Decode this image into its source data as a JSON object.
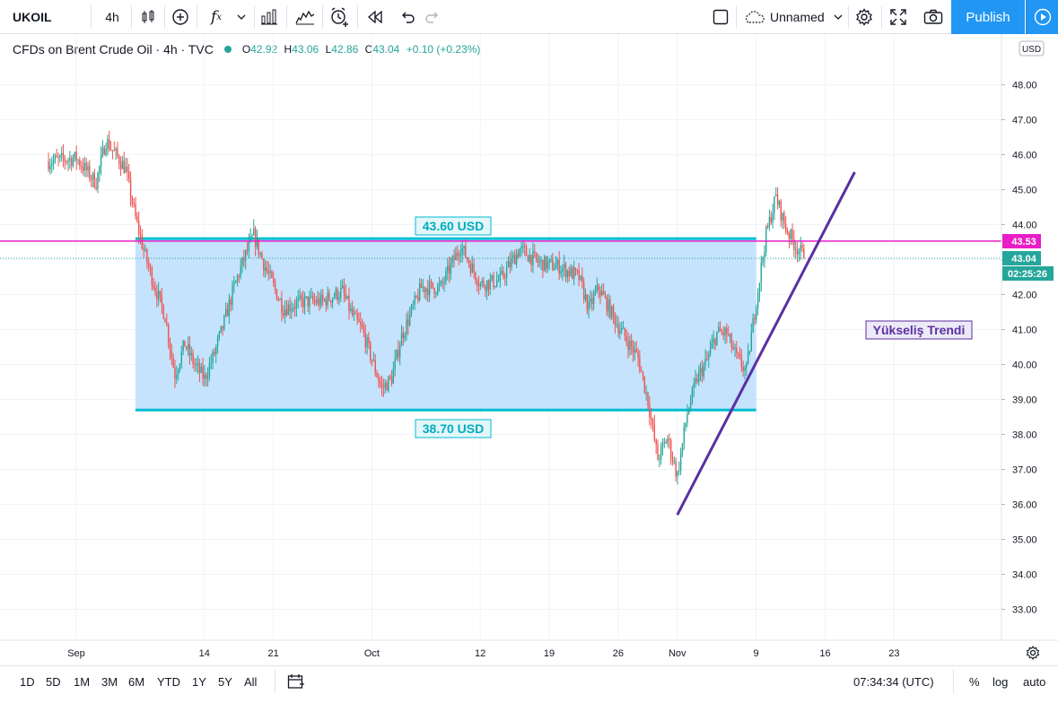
{
  "toolbar": {
    "symbol": "UKOIL",
    "interval": "4h",
    "layout_name": "Unnamed",
    "publish_label": "Publish"
  },
  "legend": {
    "title": "CFDs on Brent Crude Oil · 4h · TVC",
    "o_key": "O",
    "o": "42.92",
    "h_key": "H",
    "h": "43.06",
    "l_key": "L",
    "l": "42.86",
    "c_key": "C",
    "c": "43.04",
    "change": "+0.10 (+0.23%)"
  },
  "price_axis": {
    "currency": "USD",
    "ticks": [
      "48.00",
      "47.00",
      "46.00",
      "45.00",
      "44.00",
      "43.00",
      "42.00",
      "41.00",
      "40.00",
      "39.00",
      "38.00",
      "37.00",
      "36.00",
      "35.00",
      "34.00",
      "33.00"
    ],
    "hline_badge": "43.53",
    "last_price": "43.04",
    "countdown": "02:25:26"
  },
  "time_axis": {
    "ticks": [
      "Sep",
      "14",
      "21",
      "Oct",
      "12",
      "19",
      "26",
      "Nov",
      "9",
      "16",
      "23"
    ]
  },
  "annotations": {
    "upper_label": "43.60 USD",
    "lower_label": "38.70 USD",
    "trend_label": "Yükseliş Trendi"
  },
  "bottom": {
    "ranges": [
      "1D",
      "5D",
      "1M",
      "3M",
      "6M",
      "YTD",
      "1Y",
      "5Y",
      "All"
    ],
    "clock": "07:34:34 (UTC)",
    "percent": "%",
    "log": "log",
    "auto": "auto"
  },
  "chart_data": {
    "type": "candlestick",
    "y_axis": {
      "min": 32.4,
      "max": 49.1,
      "scale": "linear"
    },
    "x_axis_ticks": [
      "Sep",
      "14",
      "21",
      "Oct",
      "12",
      "19",
      "26",
      "Nov",
      "9",
      "16",
      "23"
    ],
    "price_path": [
      [
        "Aug 29",
        45.8
      ],
      [
        "Sep 1",
        45.9
      ],
      [
        "Sep 3",
        45.2
      ],
      [
        "Sep 4",
        46.4
      ],
      [
        "Sep 6",
        45.6
      ],
      [
        "Sep 7",
        44.2
      ],
      [
        "Sep 8",
        43.1
      ],
      [
        "Sep 9",
        42.2
      ],
      [
        "Sep 10",
        41.4
      ],
      [
        "Sep 11",
        39.7
      ],
      [
        "Sep 12",
        40.6
      ],
      [
        "Sep 13",
        40.0
      ],
      [
        "Sep 14",
        39.6
      ],
      [
        "Sep 15",
        40.3
      ],
      [
        "Sep 16",
        41.2
      ],
      [
        "Sep 17",
        42.2
      ],
      [
        "Sep 18",
        43.0
      ],
      [
        "Sep 19",
        43.7
      ],
      [
        "Sep 20",
        42.9
      ],
      [
        "Sep 22",
        41.6
      ],
      [
        "Sep 24",
        41.8
      ],
      [
        "Sep 26",
        41.8
      ],
      [
        "Sep 28",
        42.1
      ],
      [
        "Sep 29",
        41.4
      ],
      [
        "Sep 30",
        41.0
      ],
      [
        "Oct 2",
        39.3
      ],
      [
        "Oct 3",
        39.6
      ],
      [
        "Oct 4",
        40.8
      ],
      [
        "Oct 6",
        42.2
      ],
      [
        "Oct 8",
        42.2
      ],
      [
        "Oct 10",
        43.4
      ],
      [
        "Oct 12",
        42.3
      ],
      [
        "Oct 14",
        42.4
      ],
      [
        "Oct 16",
        43.3
      ],
      [
        "Oct 18",
        42.9
      ],
      [
        "Oct 20",
        42.8
      ],
      [
        "Oct 22",
        42.5
      ],
      [
        "Oct 23",
        41.6
      ],
      [
        "Oct 24",
        42.2
      ],
      [
        "Oct 26",
        41.1
      ],
      [
        "Oct 28",
        40.2
      ],
      [
        "Oct 29",
        39.0
      ],
      [
        "Oct 30",
        37.3
      ],
      [
        "Oct 31",
        37.9
      ],
      [
        "Nov 1",
        36.8
      ],
      [
        "Nov 2",
        38.6
      ],
      [
        "Nov 3",
        39.6
      ],
      [
        "Nov 4",
        40.1
      ],
      [
        "Nov 5",
        40.9
      ],
      [
        "Nov 6",
        40.9
      ],
      [
        "Nov 7",
        40.2
      ],
      [
        "Nov 8",
        39.8
      ],
      [
        "Nov 9",
        41.8
      ],
      [
        "Nov 10",
        43.7
      ],
      [
        "Nov 11",
        44.8
      ],
      [
        "Nov 12",
        43.9
      ],
      [
        "Nov 13",
        43.4
      ],
      [
        "Nov 14",
        43.04
      ]
    ],
    "horizontal_line": 43.53,
    "range_box": {
      "upper": 43.6,
      "lower": 38.7,
      "from": "Sep 7",
      "to": "Nov 9"
    },
    "trend_line": {
      "from": [
        "Nov 1",
        35.7
      ],
      "to": [
        "Nov 19",
        45.5
      ]
    },
    "colors": {
      "up": "#26a69a",
      "down": "#ef5350",
      "box": "#00bcd4",
      "hline": "#e91ec8",
      "trend": "#5b2fa1",
      "accent": "#2196f3"
    }
  }
}
